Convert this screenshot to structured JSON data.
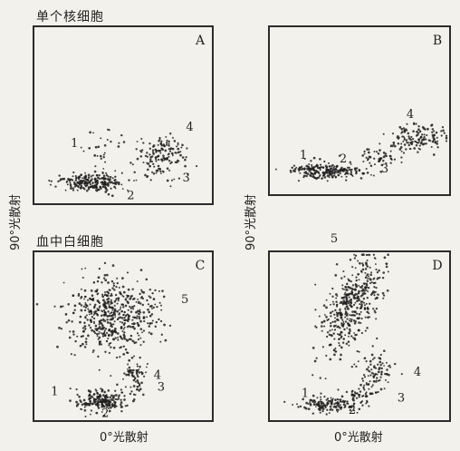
{
  "titles": {
    "top": "单个核细胞",
    "bottom": "血中白细胞"
  },
  "axes": {
    "ylabel": "90°光散射",
    "xlabel": "0°光散射"
  },
  "chart_data": [
    {
      "panel": "A",
      "type": "scatter",
      "xlim": [
        0,
        1
      ],
      "ylim": [
        0,
        1
      ],
      "grid": false,
      "clusters": [
        {
          "label": "1",
          "center": [
            0.38,
            0.28
          ],
          "spread": [
            0.07,
            0.08
          ],
          "points": 30
        },
        {
          "label": "2",
          "center": [
            0.33,
            0.12
          ],
          "spread": [
            0.09,
            0.025
          ],
          "points": 220
        },
        {
          "label": "3",
          "center": [
            0.68,
            0.22
          ],
          "spread": [
            0.07,
            0.05
          ],
          "points": 40
        },
        {
          "label": "4",
          "center": [
            0.72,
            0.3
          ],
          "spread": [
            0.08,
            0.05
          ],
          "points": 110
        }
      ]
    },
    {
      "panel": "B",
      "type": "scatter",
      "xlim": [
        0,
        1
      ],
      "ylim": [
        0,
        1
      ],
      "grid": false,
      "clusters": [
        {
          "label": "1",
          "center": [
            0.24,
            0.16
          ],
          "spread": [
            0.05,
            0.03
          ],
          "points": 25
        },
        {
          "label": "2",
          "center": [
            0.33,
            0.14
          ],
          "spread": [
            0.1,
            0.02
          ],
          "points": 200
        },
        {
          "label": "3",
          "center": [
            0.6,
            0.23
          ],
          "spread": [
            0.07,
            0.03
          ],
          "points": 50
        },
        {
          "label": "4",
          "center": [
            0.83,
            0.34
          ],
          "spread": [
            0.08,
            0.04
          ],
          "points": 130
        }
      ]
    },
    {
      "panel": "C",
      "type": "scatter",
      "xlim": [
        0,
        1
      ],
      "ylim": [
        0,
        1
      ],
      "grid": false,
      "clusters": [
        {
          "label": "1",
          "center": [
            0.3,
            0.13
          ],
          "spread": [
            0.05,
            0.03
          ],
          "points": 20
        },
        {
          "label": "2",
          "center": [
            0.38,
            0.12
          ],
          "spread": [
            0.06,
            0.03
          ],
          "points": 180
        },
        {
          "label": "3",
          "center": [
            0.56,
            0.18
          ],
          "spread": [
            0.04,
            0.03
          ],
          "points": 20
        },
        {
          "label": "4",
          "center": [
            0.57,
            0.28
          ],
          "spread": [
            0.04,
            0.025
          ],
          "points": 45
        },
        {
          "label": "5",
          "center": [
            0.44,
            0.62
          ],
          "spread": [
            0.12,
            0.12
          ],
          "points": 550
        }
      ]
    },
    {
      "panel": "D",
      "type": "scatter",
      "xlim": [
        0,
        1
      ],
      "ylim": [
        0,
        1
      ],
      "grid": false,
      "clusters": [
        {
          "label": "1",
          "center": [
            0.34,
            0.1
          ],
          "spread": [
            0.08,
            0.025
          ],
          "points": 140
        },
        {
          "label": "2",
          "center": [
            0.48,
            0.15
          ],
          "spread": [
            0.05,
            0.03
          ],
          "points": 40
        },
        {
          "label": "3",
          "center": [
            0.57,
            0.2
          ],
          "spread": [
            0.04,
            0.03
          ],
          "points": 20
        },
        {
          "label": "4",
          "center": [
            0.59,
            0.31
          ],
          "spread": [
            0.05,
            0.05
          ],
          "points": 70
        },
        {
          "label": "5",
          "center": [
            0.46,
            0.69
          ],
          "spread": [
            0.07,
            0.14
          ],
          "points": 430
        }
      ]
    }
  ]
}
